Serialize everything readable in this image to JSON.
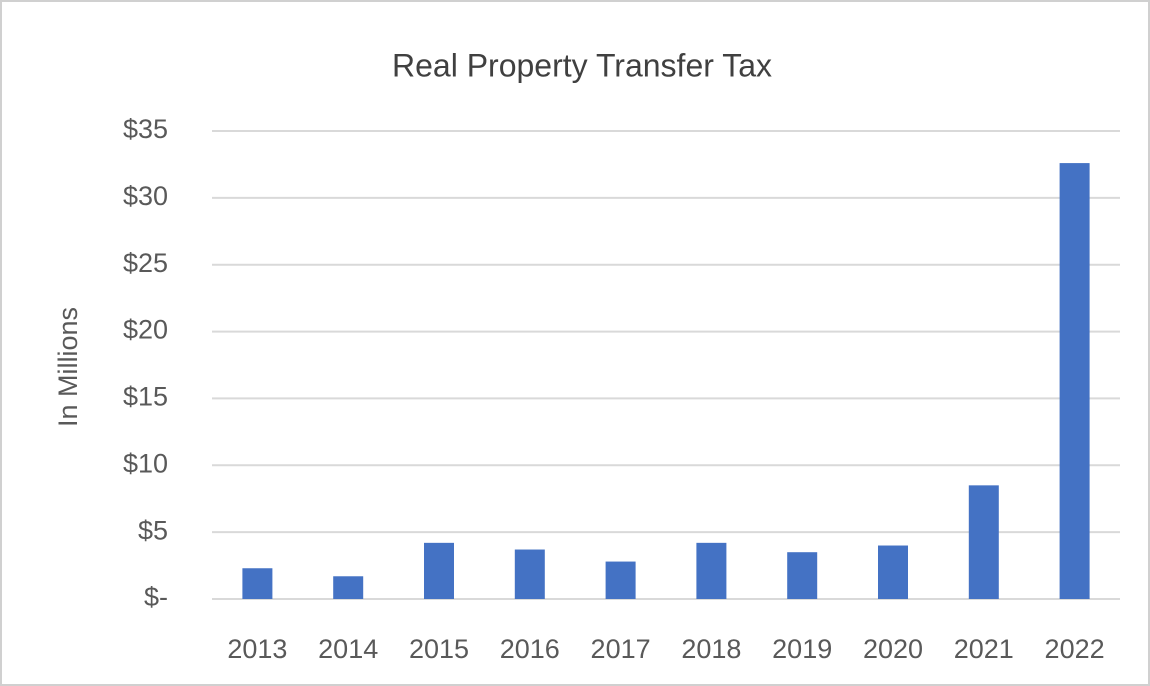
{
  "chart_data": {
    "type": "bar",
    "title": "Real Property Transfer Tax",
    "y_label": "In Millions",
    "categories": [
      "2013",
      "2014",
      "2015",
      "2016",
      "2017",
      "2018",
      "2019",
      "2020",
      "2021",
      "2022"
    ],
    "values": [
      2.3,
      1.7,
      4.2,
      3.7,
      2.8,
      4.2,
      3.5,
      4.0,
      8.5,
      32.6
    ],
    "color": "#4472c4",
    "ylim": [
      0,
      35
    ],
    "yticks": [
      {
        "value": 0,
        "label": "$-"
      },
      {
        "value": 5,
        "label": "$5"
      },
      {
        "value": 10,
        "label": "$10"
      },
      {
        "value": 15,
        "label": "$15"
      },
      {
        "value": 20,
        "label": "$20"
      },
      {
        "value": 25,
        "label": "$25"
      },
      {
        "value": 30,
        "label": "$30"
      },
      {
        "value": 35,
        "label": "$35"
      }
    ],
    "grid": true
  }
}
